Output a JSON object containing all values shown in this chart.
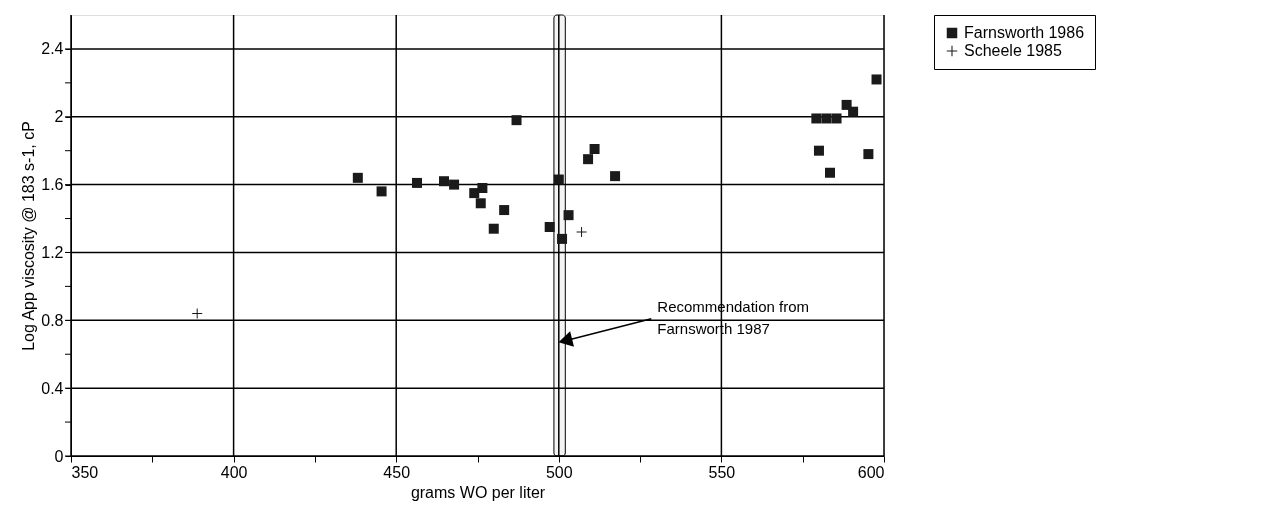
{
  "chart_data": {
    "type": "scatter",
    "xlabel": "grams WO per liter",
    "ylabel": "Log App viscosity @ 183 s-1, cP",
    "xlim": [
      350,
      600
    ],
    "ylim": [
      0,
      2.6
    ],
    "xticks": [
      350,
      {
        "value": 375,
        "label": null
      },
      400,
      {
        "value": 425,
        "label": null
      },
      450,
      {
        "value": 475,
        "label": null
      },
      500,
      {
        "value": 525,
        "label": null
      },
      550,
      {
        "value": 575,
        "label": null
      },
      600
    ],
    "yticks": [
      0,
      {
        "value": 0.2,
        "label": null
      },
      0.4,
      {
        "value": 0.6,
        "label": null
      },
      0.8,
      {
        "value": 1,
        "label": null
      },
      1.2,
      {
        "value": 1.4,
        "label": null
      },
      1.6,
      {
        "value": 1.8,
        "label": null
      },
      2,
      {
        "value": 2.2,
        "label": null
      },
      2.4
    ],
    "grid": true,
    "legend": "right",
    "series": [
      {
        "name": "Farnsworth 1986",
        "color": "#1a1a1a",
        "marker": "square",
        "x": [
          438.2,
          445.5,
          456.4,
          464.7,
          467.8,
          474,
          476.5,
          476,
          483.2,
          480,
          487,
          500,
          503,
          497.2,
          501,
          511,
          509,
          517.3,
          597.7,
          590.5,
          588.5,
          579.2,
          582.3,
          585.4,
          580,
          595.2,
          583.4
        ],
        "values": [
          1.64,
          1.56,
          1.61,
          1.62,
          1.6,
          1.55,
          1.58,
          1.49,
          1.45,
          1.34,
          1.98,
          1.63,
          1.42,
          1.35,
          1.28,
          1.81,
          1.75,
          1.65,
          2.22,
          2.03,
          2.07,
          1.99,
          1.99,
          1.99,
          1.8,
          1.78,
          1.67
        ]
      },
      {
        "name": "Scheele 1985",
        "color": "#1a1a1a",
        "marker": "cross",
        "x": [
          388.8,
          507
        ],
        "values": [
          0.84,
          1.32
        ]
      }
    ],
    "bands": [
      {
        "axis": "x",
        "from": 498.5,
        "to": 502,
        "color": "#f4f4f4"
      }
    ],
    "annotations": [
      {
        "text": "Recommendation from\nFarnsworth 1987",
        "x": 502,
        "y": 0.68
      }
    ]
  }
}
